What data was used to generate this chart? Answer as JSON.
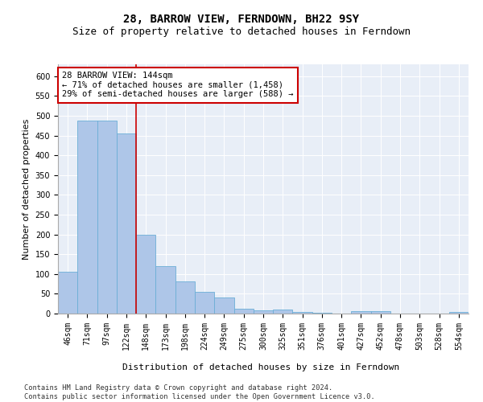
{
  "title": "28, BARROW VIEW, FERNDOWN, BH22 9SY",
  "subtitle": "Size of property relative to detached houses in Ferndown",
  "xlabel": "Distribution of detached houses by size in Ferndown",
  "ylabel": "Number of detached properties",
  "categories": [
    "46sqm",
    "71sqm",
    "97sqm",
    "122sqm",
    "148sqm",
    "173sqm",
    "198sqm",
    "224sqm",
    "249sqm",
    "275sqm",
    "300sqm",
    "325sqm",
    "351sqm",
    "376sqm",
    "401sqm",
    "427sqm",
    "452sqm",
    "478sqm",
    "503sqm",
    "528sqm",
    "554sqm"
  ],
  "values": [
    105,
    487,
    487,
    455,
    200,
    120,
    82,
    55,
    40,
    13,
    9,
    10,
    4,
    2,
    1,
    6,
    6,
    0,
    0,
    0,
    5
  ],
  "bar_color": "#aec6e8",
  "bar_edge_color": "#6baed6",
  "vline_color": "#cc0000",
  "vline_x": 3.5,
  "annotation_text": "28 BARROW VIEW: 144sqm\n← 71% of detached houses are smaller (1,458)\n29% of semi-detached houses are larger (588) →",
  "annotation_box_color": "white",
  "annotation_box_edge": "#cc0000",
  "ylim": [
    0,
    630
  ],
  "yticks": [
    0,
    50,
    100,
    150,
    200,
    250,
    300,
    350,
    400,
    450,
    500,
    550,
    600
  ],
  "background_color": "#e8eef7",
  "footer_text": "Contains HM Land Registry data © Crown copyright and database right 2024.\nContains public sector information licensed under the Open Government Licence v3.0.",
  "title_fontsize": 10,
  "subtitle_fontsize": 9,
  "xlabel_fontsize": 8,
  "ylabel_fontsize": 8,
  "tick_fontsize": 7,
  "annotation_fontsize": 7.5,
  "footer_fontsize": 6.2
}
